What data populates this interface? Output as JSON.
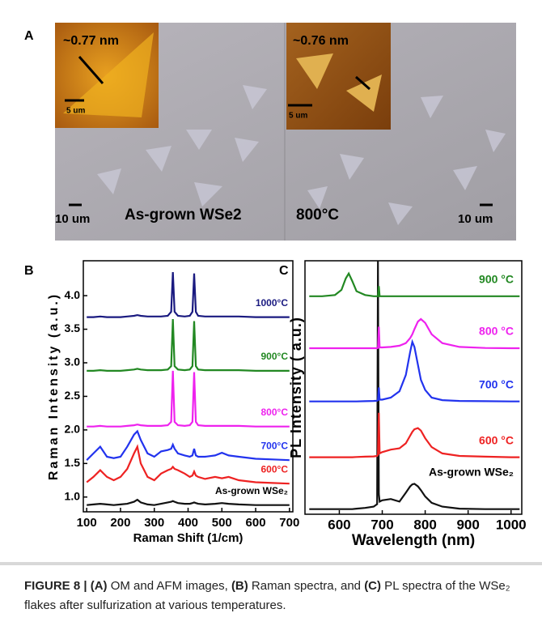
{
  "panel_a": {
    "label": "A",
    "left_inset_height": "~0.77 nm",
    "left_inset_scale": "5 um",
    "right_inset_height": "~0.76 nm",
    "right_inset_scale": "5 um",
    "left_scale": "10 um",
    "left_caption": "As-grown WSe2",
    "right_caption": "800°C",
    "right_scale": "10 um"
  },
  "chart_data": [
    {
      "type": "line",
      "label": "B",
      "x_label": "Raman Shift (1/cm)",
      "y_label": "Raman Intensity (a.u.)",
      "x": [
        100,
        120,
        140,
        160,
        180,
        200,
        220,
        240,
        250,
        260,
        280,
        300,
        320,
        340,
        350,
        355,
        360,
        370,
        390,
        405,
        413,
        418,
        423,
        430,
        450,
        480,
        500,
        520,
        550,
        600,
        650,
        700
      ],
      "xlim": [
        90,
        710
      ],
      "xticks": [
        100,
        200,
        300,
        400,
        500,
        600,
        700
      ],
      "ylim": [
        0.78,
        4.52
      ],
      "yticks": [
        {
          "value": 1,
          "label": "1.0"
        },
        1.5,
        {
          "value": 2,
          "label": "2.0"
        },
        2.5,
        {
          "value": 3,
          "label": "3.0"
        },
        3.5,
        {
          "value": 4,
          "label": "4.0"
        }
      ],
      "series": [
        {
          "name": "As-grown WSe₂",
          "color": "#111111",
          "values": [
            0.88,
            0.89,
            0.9,
            0.89,
            0.88,
            0.89,
            0.9,
            0.93,
            0.96,
            0.92,
            0.89,
            0.88,
            0.9,
            0.92,
            0.93,
            0.94,
            0.93,
            0.91,
            0.9,
            0.9,
            0.91,
            0.92,
            0.91,
            0.9,
            0.89,
            0.9,
            0.91,
            0.9,
            0.89,
            0.88,
            0.88,
            0.88
          ]
        },
        {
          "name": "600°C",
          "color": "#ee2222",
          "values": [
            1.22,
            1.3,
            1.4,
            1.3,
            1.25,
            1.3,
            1.42,
            1.65,
            1.75,
            1.5,
            1.3,
            1.25,
            1.35,
            1.4,
            1.42,
            1.45,
            1.42,
            1.4,
            1.35,
            1.3,
            1.32,
            1.38,
            1.32,
            1.3,
            1.27,
            1.3,
            1.28,
            1.3,
            1.25,
            1.22,
            1.21,
            1.2
          ]
        },
        {
          "name": "700°C",
          "color": "#2233ee",
          "values": [
            1.55,
            1.65,
            1.75,
            1.6,
            1.58,
            1.6,
            1.75,
            1.93,
            1.98,
            1.85,
            1.65,
            1.6,
            1.68,
            1.7,
            1.72,
            1.78,
            1.72,
            1.65,
            1.62,
            1.6,
            1.62,
            1.72,
            1.62,
            1.6,
            1.6,
            1.62,
            1.66,
            1.62,
            1.6,
            1.57,
            1.56,
            1.55
          ]
        },
        {
          "name": "800°C",
          "color": "#ee22ee",
          "values": [
            2.05,
            2.05,
            2.06,
            2.05,
            2.05,
            2.05,
            2.06,
            2.07,
            2.08,
            2.07,
            2.06,
            2.06,
            2.06,
            2.07,
            2.12,
            2.88,
            2.12,
            2.07,
            2.06,
            2.07,
            2.12,
            2.86,
            2.12,
            2.07,
            2.06,
            2.06,
            2.06,
            2.06,
            2.06,
            2.05,
            2.05,
            2.05
          ]
        },
        {
          "name": "900°C",
          "color": "#228822",
          "values": [
            2.88,
            2.88,
            2.89,
            2.88,
            2.88,
            2.88,
            2.89,
            2.9,
            2.91,
            2.9,
            2.89,
            2.89,
            2.89,
            2.9,
            2.95,
            3.65,
            2.95,
            2.9,
            2.89,
            2.9,
            2.95,
            3.62,
            2.95,
            2.9,
            2.89,
            2.89,
            2.89,
            2.89,
            2.89,
            2.88,
            2.88,
            2.88
          ]
        },
        {
          "name": "1000°C",
          "color": "#1a1a80",
          "values": [
            3.68,
            3.68,
            3.69,
            3.68,
            3.68,
            3.68,
            3.69,
            3.7,
            3.71,
            3.7,
            3.69,
            3.69,
            3.69,
            3.7,
            3.76,
            4.35,
            3.76,
            3.7,
            3.69,
            3.7,
            3.76,
            4.33,
            3.76,
            3.7,
            3.69,
            3.69,
            3.69,
            3.69,
            3.69,
            3.68,
            3.68,
            3.68
          ]
        }
      ]
    },
    {
      "type": "line",
      "label": "C",
      "x_label": "Wavelength (nm)",
      "y_label": "PL Intensity ( a.u.)",
      "x": [
        530,
        560,
        590,
        605,
        615,
        622,
        630,
        640,
        660,
        680,
        688,
        690,
        692,
        694,
        700,
        720,
        740,
        755,
        765,
        770,
        775,
        783,
        790,
        800,
        815,
        840,
        880,
        940,
        1000,
        1020
      ],
      "xlim": [
        520,
        1025
      ],
      "xticks": [
        600,
        700,
        800,
        900,
        1000
      ],
      "ylim": [
        0,
        10
      ],
      "series": [
        {
          "name": "As-grown WSe₂",
          "color": "#111111",
          "values": [
            0.2,
            0.2,
            0.2,
            0.2,
            0.2,
            0.2,
            0.2,
            0.22,
            0.25,
            0.3,
            0.4,
            10,
            0.8,
            0.5,
            0.55,
            0.6,
            0.5,
            0.85,
            1.1,
            1.18,
            1.2,
            1.1,
            0.95,
            0.7,
            0.45,
            0.3,
            0.22,
            0.2,
            0.2,
            0.2
          ]
        },
        {
          "name": "600 °C",
          "color": "#ee2222",
          "values": [
            2.25,
            2.25,
            2.25,
            2.25,
            2.25,
            2.25,
            2.25,
            2.26,
            2.27,
            2.28,
            2.3,
            2.35,
            4.0,
            2.4,
            2.45,
            2.55,
            2.6,
            2.8,
            3.1,
            3.25,
            3.35,
            3.4,
            3.3,
            3.0,
            2.65,
            2.4,
            2.3,
            2.27,
            2.25,
            2.25
          ]
        },
        {
          "name": "700 °C",
          "color": "#2233ee",
          "values": [
            4.45,
            4.45,
            4.45,
            4.45,
            4.45,
            4.45,
            4.45,
            4.45,
            4.46,
            4.47,
            4.48,
            4.5,
            5.0,
            4.52,
            4.52,
            4.6,
            4.85,
            5.5,
            6.4,
            6.8,
            6.6,
            5.9,
            5.3,
            4.9,
            4.6,
            4.5,
            4.47,
            4.46,
            4.45,
            4.45
          ]
        },
        {
          "name": "800 °C",
          "color": "#ee22ee",
          "values": [
            6.55,
            6.55,
            6.55,
            6.55,
            6.55,
            6.55,
            6.55,
            6.55,
            6.55,
            6.55,
            6.55,
            6.56,
            7.4,
            6.58,
            6.58,
            6.6,
            6.65,
            6.75,
            6.95,
            7.1,
            7.3,
            7.6,
            7.7,
            7.55,
            7.1,
            6.75,
            6.6,
            6.56,
            6.55,
            6.55
          ]
        },
        {
          "name": "900 °C",
          "color": "#228822",
          "values": [
            8.6,
            8.6,
            8.65,
            8.85,
            9.3,
            9.5,
            9.2,
            8.8,
            8.65,
            8.6,
            8.6,
            8.6,
            9.0,
            8.6,
            8.6,
            8.6,
            8.6,
            8.6,
            8.6,
            8.6,
            8.6,
            8.6,
            8.6,
            8.6,
            8.6,
            8.6,
            8.6,
            8.6,
            8.6,
            8.6
          ]
        }
      ]
    }
  ],
  "caption": {
    "segments": [
      "FIGURE 8 | (A)",
      " OM and AFM images, ",
      "(B)",
      " Raman spectra, and ",
      "(C)",
      " PL spectra of the WSe₂ flakes after sulfurization at various temperatures."
    ]
  }
}
